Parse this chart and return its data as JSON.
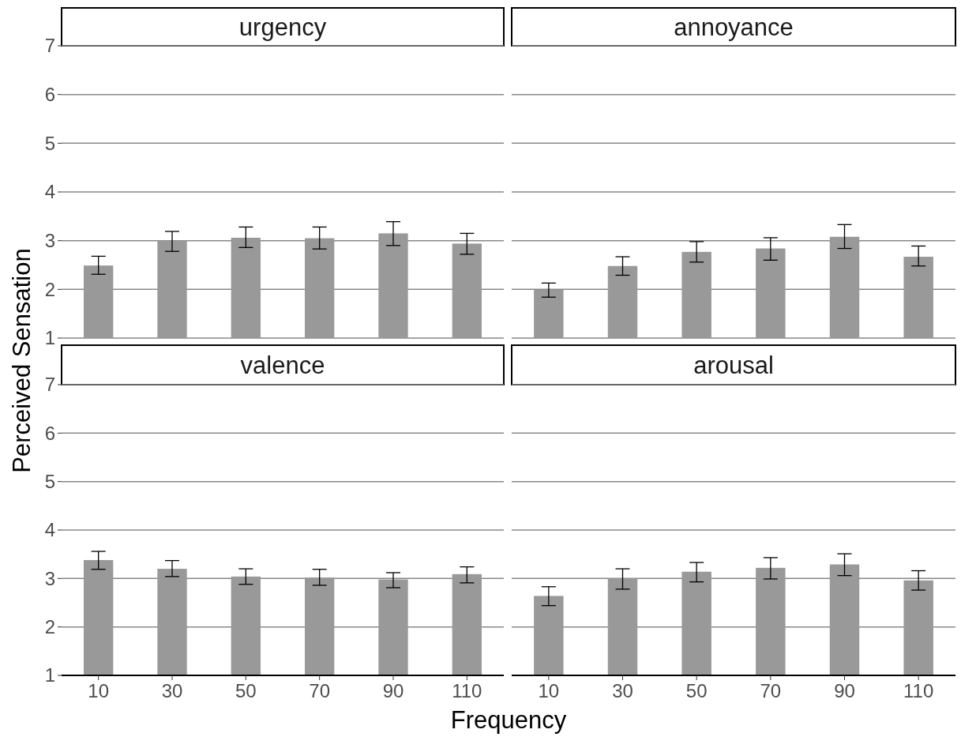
{
  "chart_data": [
    {
      "type": "bar",
      "title": "urgency",
      "ylabel": "Perceived Sensation",
      "categories": [
        "10",
        "30",
        "50",
        "70",
        "90",
        "110"
      ],
      "values": [
        2.49,
        3.0,
        3.06,
        3.05,
        3.15,
        2.94
      ],
      "errors": [
        [
          2.31,
          2.68
        ],
        [
          2.78,
          3.19
        ],
        [
          2.86,
          3.28
        ],
        [
          2.83,
          3.28
        ],
        [
          2.9,
          3.39
        ],
        [
          2.72,
          3.15
        ]
      ],
      "color": "#999999",
      "ylim": [
        1,
        7
      ],
      "yticks": [
        1,
        2,
        3,
        4,
        5,
        6,
        7
      ],
      "grid": "y",
      "tick_labels": "y"
    },
    {
      "type": "bar",
      "title": "annoyance",
      "categories": [
        "10",
        "30",
        "50",
        "70",
        "90",
        "110"
      ],
      "values": [
        1.99,
        2.48,
        2.77,
        2.84,
        3.08,
        2.67
      ],
      "errors": [
        [
          1.84,
          2.13
        ],
        [
          2.29,
          2.67
        ],
        [
          2.56,
          2.98
        ],
        [
          2.6,
          3.06
        ],
        [
          2.84,
          3.33
        ],
        [
          2.48,
          2.89
        ]
      ],
      "color": "#999999",
      "ylim": [
        1,
        7
      ],
      "yticks": [
        1,
        2,
        3,
        4,
        5,
        6,
        7
      ],
      "grid": "y",
      "tick_labels": false
    },
    {
      "type": "bar",
      "title": "valence",
      "xlabel": "Frequency",
      "categories": [
        "10",
        "30",
        "50",
        "70",
        "90",
        "110"
      ],
      "values": [
        3.38,
        3.2,
        3.04,
        3.02,
        2.98,
        3.09
      ],
      "errors": [
        [
          3.19,
          3.56
        ],
        [
          3.04,
          3.37
        ],
        [
          2.88,
          3.2
        ],
        [
          2.86,
          3.19
        ],
        [
          2.81,
          3.12
        ],
        [
          2.91,
          3.24
        ]
      ],
      "color": "#999999",
      "ylim": [
        1,
        7
      ],
      "yticks": [
        1,
        2,
        3,
        4,
        5,
        6,
        7
      ],
      "grid": "y"
    },
    {
      "type": "bar",
      "title": "arousal",
      "categories": [
        "10",
        "30",
        "50",
        "70",
        "90",
        "110"
      ],
      "values": [
        2.64,
        3.0,
        3.14,
        3.22,
        3.29,
        2.96
      ],
      "errors": [
        [
          2.44,
          2.83
        ],
        [
          2.78,
          3.2
        ],
        [
          2.93,
          3.33
        ],
        [
          2.99,
          3.43
        ],
        [
          3.06,
          3.51
        ],
        [
          2.76,
          3.16
        ]
      ],
      "color": "#999999",
      "ylim": [
        1,
        7
      ],
      "yticks": [
        1,
        2,
        3,
        4,
        5,
        6,
        7
      ],
      "grid": "y",
      "tick_labels": "x"
    }
  ]
}
